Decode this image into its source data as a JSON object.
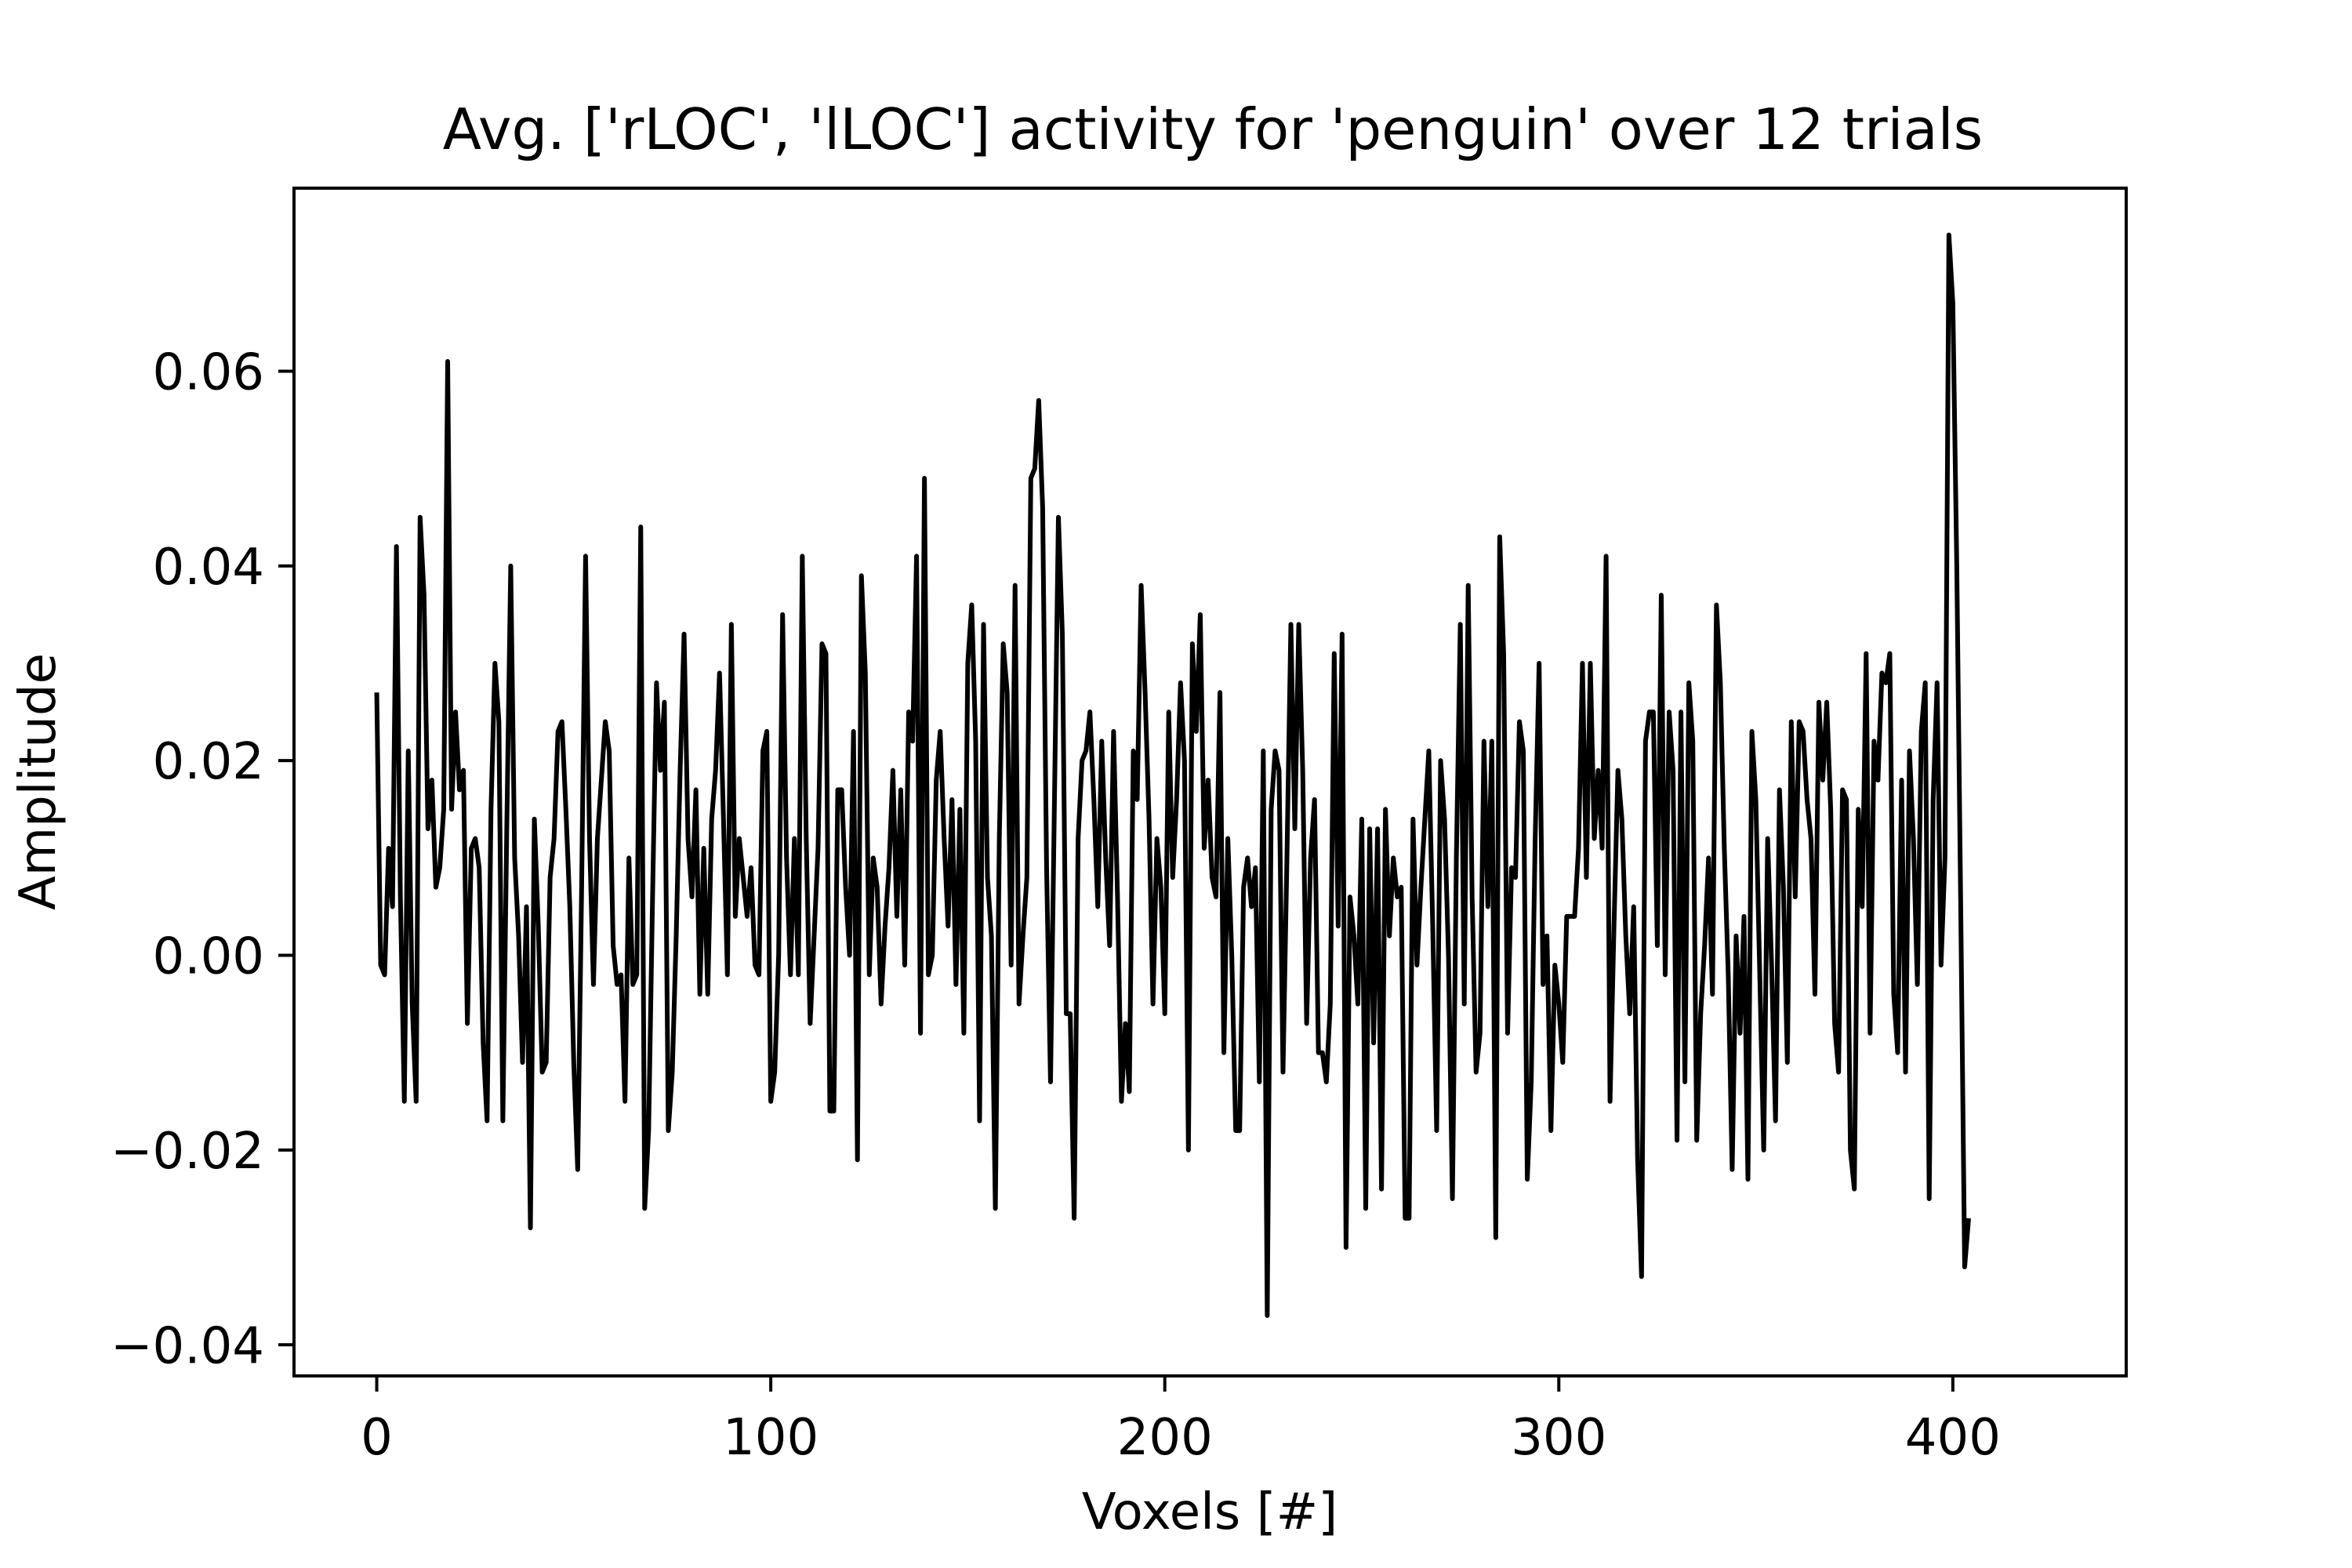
{
  "chart_data": {
    "type": "line",
    "title": "Avg. ['rLOC', 'lLOC'] activity for 'penguin' over 12 trials",
    "xlabel": "Voxels [#]",
    "ylabel": "Amplitude",
    "xlim": [
      -21,
      444
    ],
    "ylim": [
      -0.0432,
      0.0788
    ],
    "x_ticks": [
      0,
      100,
      200,
      300,
      400
    ],
    "x_tick_labels": [
      "0",
      "100",
      "200",
      "300",
      "400"
    ],
    "y_ticks": [
      -0.04,
      -0.02,
      0.0,
      0.02,
      0.04,
      0.06
    ],
    "y_tick_labels": [
      "−0.04",
      "−0.02",
      "0.00",
      "0.02",
      "0.04",
      "0.06"
    ],
    "grid": false,
    "line_color": "#000000",
    "series": [
      {
        "x_start": 0,
        "x_step": 1,
        "values": [
          0.027,
          -0.001,
          -0.002,
          0.011,
          0.005,
          0.042,
          0.006,
          -0.015,
          0.021,
          -0.005,
          -0.015,
          0.045,
          0.037,
          0.013,
          0.018,
          0.007,
          0.009,
          0.015,
          0.061,
          0.015,
          0.025,
          0.017,
          0.019,
          -0.007,
          0.011,
          0.012,
          0.009,
          -0.009,
          -0.017,
          0.015,
          0.03,
          0.024,
          -0.017,
          0.013,
          0.04,
          0.01,
          0.002,
          -0.011,
          0.005,
          -0.028,
          0.014,
          0.003,
          -0.012,
          -0.011,
          0.008,
          0.012,
          0.023,
          0.024,
          0.015,
          0.005,
          -0.011,
          -0.022,
          0.007,
          0.041,
          0.012,
          -0.003,
          0.012,
          0.018,
          0.024,
          0.021,
          0.001,
          -0.003,
          -0.002,
          -0.015,
          0.01,
          -0.003,
          -0.002,
          0.044,
          -0.026,
          -0.018,
          0.006,
          0.028,
          0.019,
          0.026,
          -0.018,
          -0.012,
          0.002,
          0.019,
          0.033,
          0.012,
          0.006,
          0.017,
          -0.004,
          0.011,
          -0.004,
          0.014,
          0.019,
          0.029,
          0.014,
          -0.002,
          0.034,
          0.004,
          0.012,
          0.008,
          0.004,
          0.009,
          -0.001,
          -0.002,
          0.021,
          0.023,
          -0.015,
          -0.012,
          0.0,
          0.035,
          0.01,
          -0.002,
          0.012,
          -0.002,
          0.041,
          0.012,
          -0.007,
          0.002,
          0.011,
          0.032,
          0.031,
          -0.016,
          -0.016,
          0.017,
          0.017,
          0.007,
          0.0,
          0.023,
          -0.021,
          0.039,
          0.029,
          -0.002,
          0.01,
          0.007,
          -0.005,
          0.003,
          0.009,
          0.019,
          0.004,
          0.017,
          -0.001,
          0.025,
          0.022,
          0.041,
          -0.008,
          0.049,
          -0.002,
          0.0,
          0.018,
          0.023,
          0.012,
          0.003,
          0.016,
          -0.003,
          0.015,
          -0.008,
          0.03,
          0.036,
          0.022,
          -0.017,
          0.034,
          0.008,
          0.002,
          -0.026,
          0.012,
          0.032,
          0.027,
          -0.001,
          0.038,
          -0.005,
          0.002,
          0.008,
          0.049,
          0.05,
          0.057,
          0.046,
          0.009,
          -0.013,
          0.016,
          0.045,
          0.033,
          -0.006,
          -0.006,
          -0.027,
          0.012,
          0.02,
          0.021,
          0.025,
          0.016,
          0.005,
          0.022,
          0.01,
          0.001,
          0.023,
          0.006,
          -0.015,
          -0.007,
          -0.014,
          0.021,
          0.016,
          0.038,
          0.027,
          0.014,
          -0.005,
          0.012,
          0.007,
          -0.006,
          0.025,
          0.008,
          0.016,
          0.028,
          0.02,
          -0.02,
          0.032,
          0.023,
          0.035,
          0.011,
          0.018,
          0.008,
          0.006,
          0.027,
          -0.01,
          0.012,
          0.0,
          -0.018,
          -0.018,
          0.007,
          0.01,
          0.005,
          0.009,
          -0.013,
          0.021,
          -0.037,
          0.015,
          0.021,
          0.019,
          -0.012,
          0.01,
          0.034,
          0.013,
          0.034,
          0.019,
          -0.007,
          0.01,
          0.016,
          -0.01,
          -0.01,
          -0.013,
          -0.005,
          0.031,
          0.003,
          0.033,
          -0.03,
          0.006,
          0.002,
          -0.005,
          0.014,
          -0.026,
          0.013,
          -0.009,
          0.013,
          -0.024,
          0.015,
          0.002,
          0.01,
          0.006,
          0.007,
          -0.027,
          -0.027,
          0.014,
          -0.001,
          0.007,
          0.014,
          0.021,
          0.003,
          -0.018,
          0.02,
          0.014,
          0.0,
          -0.025,
          0.01,
          0.034,
          -0.005,
          0.038,
          0.006,
          -0.012,
          -0.008,
          0.022,
          0.005,
          0.022,
          -0.029,
          0.043,
          0.031,
          -0.008,
          0.009,
          0.008,
          0.024,
          0.021,
          -0.023,
          -0.013,
          0.012,
          0.03,
          -0.003,
          0.002,
          -0.018,
          -0.001,
          -0.005,
          -0.011,
          0.004,
          0.004,
          0.004,
          0.011,
          0.03,
          0.008,
          0.03,
          0.012,
          0.019,
          0.011,
          0.041,
          -0.015,
          0.003,
          0.019,
          0.014,
          0.002,
          -0.006,
          0.005,
          -0.021,
          -0.033,
          0.022,
          0.025,
          0.025,
          0.001,
          0.037,
          -0.002,
          0.025,
          0.019,
          -0.019,
          0.025,
          -0.013,
          0.028,
          0.022,
          -0.019,
          -0.006,
          0.001,
          0.01,
          -0.004,
          0.036,
          0.028,
          0.011,
          -0.002,
          -0.022,
          0.002,
          -0.008,
          0.004,
          -0.023,
          0.023,
          0.016,
          -0.002,
          -0.02,
          0.012,
          -0.001,
          -0.017,
          0.017,
          0.007,
          -0.011,
          0.024,
          0.006,
          0.024,
          0.023,
          0.016,
          0.012,
          -0.004,
          0.026,
          0.018,
          0.026,
          0.015,
          -0.007,
          -0.012,
          0.017,
          0.016,
          -0.02,
          -0.024,
          0.015,
          0.005,
          0.031,
          -0.008,
          0.022,
          0.018,
          0.029,
          0.028,
          0.031,
          -0.004,
          -0.01,
          0.018,
          -0.012,
          0.021,
          0.012,
          -0.003,
          0.023,
          0.028,
          -0.025,
          0.016,
          0.028,
          -0.001,
          0.01,
          0.074,
          0.067,
          0.04,
          0.005,
          -0.032,
          -0.027
        ]
      }
    ]
  }
}
